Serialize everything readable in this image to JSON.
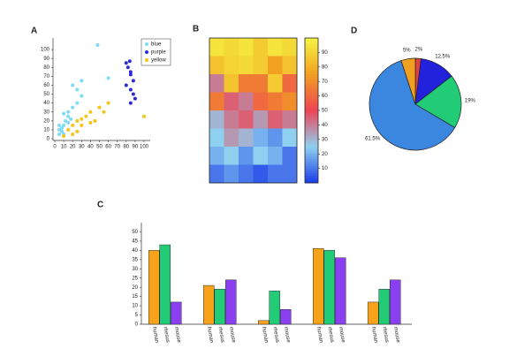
{
  "chart_data": [
    {
      "label": "A",
      "type": "scatter",
      "xlim": [
        0,
        100
      ],
      "ylim": [
        0,
        110
      ],
      "xticks": [
        0,
        10,
        20,
        30,
        40,
        50,
        60,
        70,
        80,
        90,
        100
      ],
      "yticks": [
        0,
        10,
        20,
        30,
        40,
        50,
        60,
        70,
        80,
        90,
        100
      ],
      "legend": "upper right",
      "series": [
        {
          "name": "blue",
          "color": "#7fdcf7",
          "x": [
            5,
            5,
            8,
            10,
            12,
            15,
            10,
            15,
            20,
            25,
            30,
            25,
            30,
            20,
            48,
            60,
            15,
            8,
            18,
            5,
            10
          ],
          "values": [
            5,
            10,
            12,
            15,
            20,
            25,
            28,
            30,
            35,
            40,
            48,
            55,
            65,
            60,
            105,
            68,
            18,
            8,
            22,
            15,
            5
          ]
        },
        {
          "name": "purple",
          "color": "#2b2bd6",
          "x": [
            80,
            82,
            85,
            80,
            85,
            88,
            90,
            85,
            88,
            85,
            84
          ],
          "values": [
            85,
            80,
            75,
            60,
            55,
            50,
            45,
            40,
            65,
            72,
            87
          ]
        },
        {
          "name": "yellow",
          "color": "#f5c518",
          "x": [
            15,
            20,
            25,
            30,
            35,
            40,
            45,
            50,
            60,
            100,
            25,
            30,
            40,
            55,
            20,
            10
          ],
          "values": [
            10,
            15,
            20,
            15,
            25,
            30,
            20,
            35,
            40,
            25,
            8,
            22,
            18,
            30,
            5,
            3
          ]
        }
      ]
    },
    {
      "label": "B",
      "type": "heatmap",
      "zlim": [
        0,
        100
      ],
      "zticks": [
        10,
        20,
        30,
        40,
        50,
        60,
        70,
        80,
        90
      ],
      "colorscale": [
        "#1a3ce8",
        "#8fd0f0",
        "#ee4455",
        "#f2a020",
        "#f5f542"
      ],
      "z": [
        [
          95,
          92,
          95,
          88,
          95,
          92
        ],
        [
          85,
          90,
          92,
          88,
          75,
          85
        ],
        [
          40,
          85,
          65,
          65,
          88,
          60
        ],
        [
          65,
          45,
          40,
          60,
          65,
          70
        ],
        [
          30,
          40,
          45,
          35,
          45,
          40
        ],
        [
          25,
          35,
          30,
          20,
          15,
          25
        ],
        [
          20,
          25,
          15,
          25,
          20,
          10
        ],
        [
          10,
          15,
          10,
          5,
          10,
          10
        ]
      ]
    },
    {
      "label": "D",
      "type": "pie",
      "values": [
        2,
        12.5,
        19,
        61.5,
        5
      ],
      "value_labels": [
        "2%",
        "12.5%",
        "19%",
        "61.5%",
        "5%"
      ],
      "colors": [
        "#e04040",
        "#2222dd",
        "#22cc77",
        "#3b86de",
        "#f0a020"
      ]
    },
    {
      "label": "C",
      "type": "bar",
      "ylim": [
        0,
        55
      ],
      "yticks": [
        0,
        5,
        10,
        15,
        20,
        25,
        30,
        35,
        40,
        45,
        50
      ],
      "categories": [
        null,
        null,
        null,
        null,
        null
      ],
      "series": [
        {
          "name": "human",
          "color": "#f7a21b",
          "values": [
            40,
            21,
            2,
            41,
            12
          ]
        },
        {
          "name": "rhesus",
          "color": "#22cc77",
          "values": [
            43,
            19,
            18,
            40,
            19
          ]
        },
        {
          "name": "mouse",
          "color": "#8a3ff0",
          "values": [
            12,
            24,
            8,
            36,
            24
          ]
        }
      ]
    }
  ]
}
